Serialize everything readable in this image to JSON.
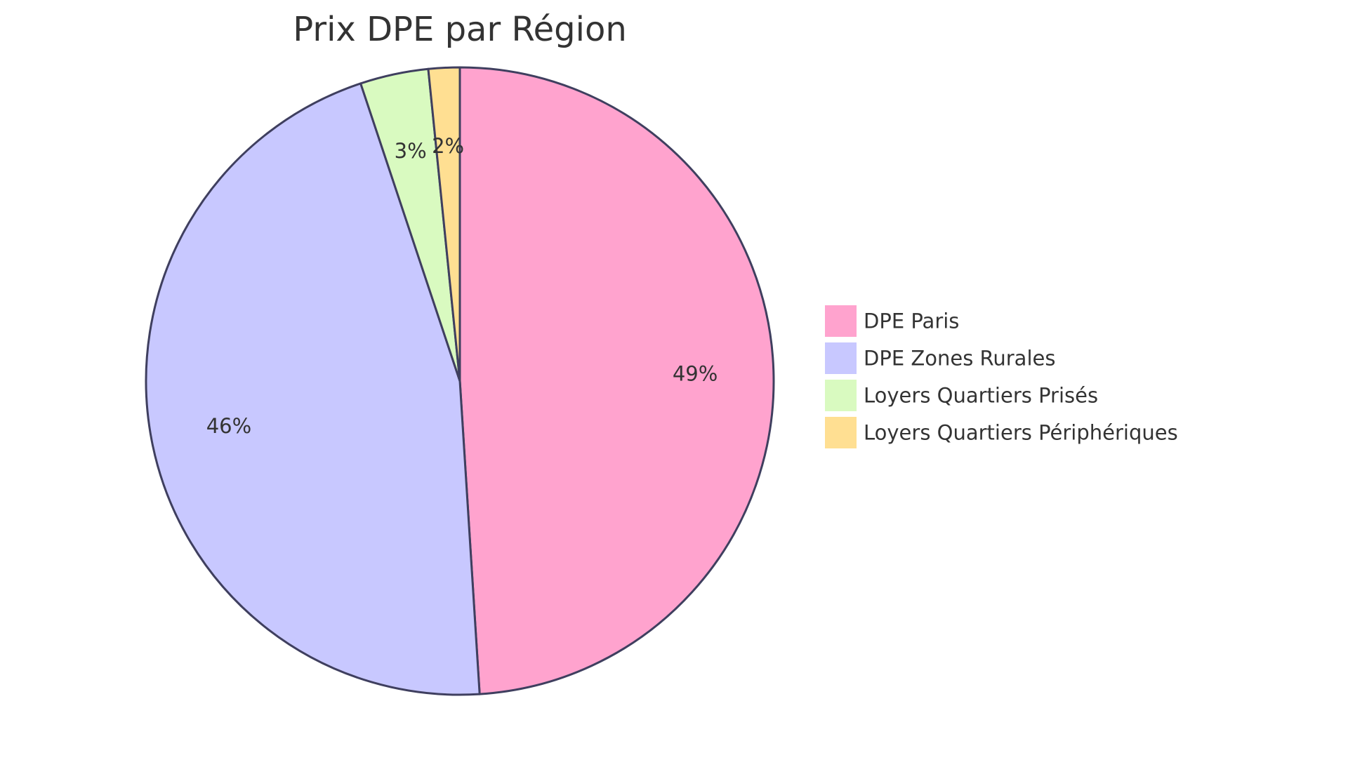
{
  "chart_data": {
    "type": "pie",
    "title": "Prix DPE par Région",
    "legend_position": "right",
    "slices": [
      {
        "label": "DPE Paris",
        "percent": 48.8,
        "display": "49%",
        "color": "#FFA3CE"
      },
      {
        "label": "DPE Zones Rurales",
        "percent": 45.7,
        "display": "46%",
        "color": "#C8C8FF"
      },
      {
        "label": "Loyers Quartiers Prisés",
        "percent": 3.5,
        "display": "3%",
        "color": "#D9FAC0"
      },
      {
        "label": "Loyers Quartiers Périphériques",
        "percent": 1.6,
        "display": "2%",
        "color": "#FFDF92"
      }
    ],
    "stroke_color": "#3F3F5F"
  }
}
